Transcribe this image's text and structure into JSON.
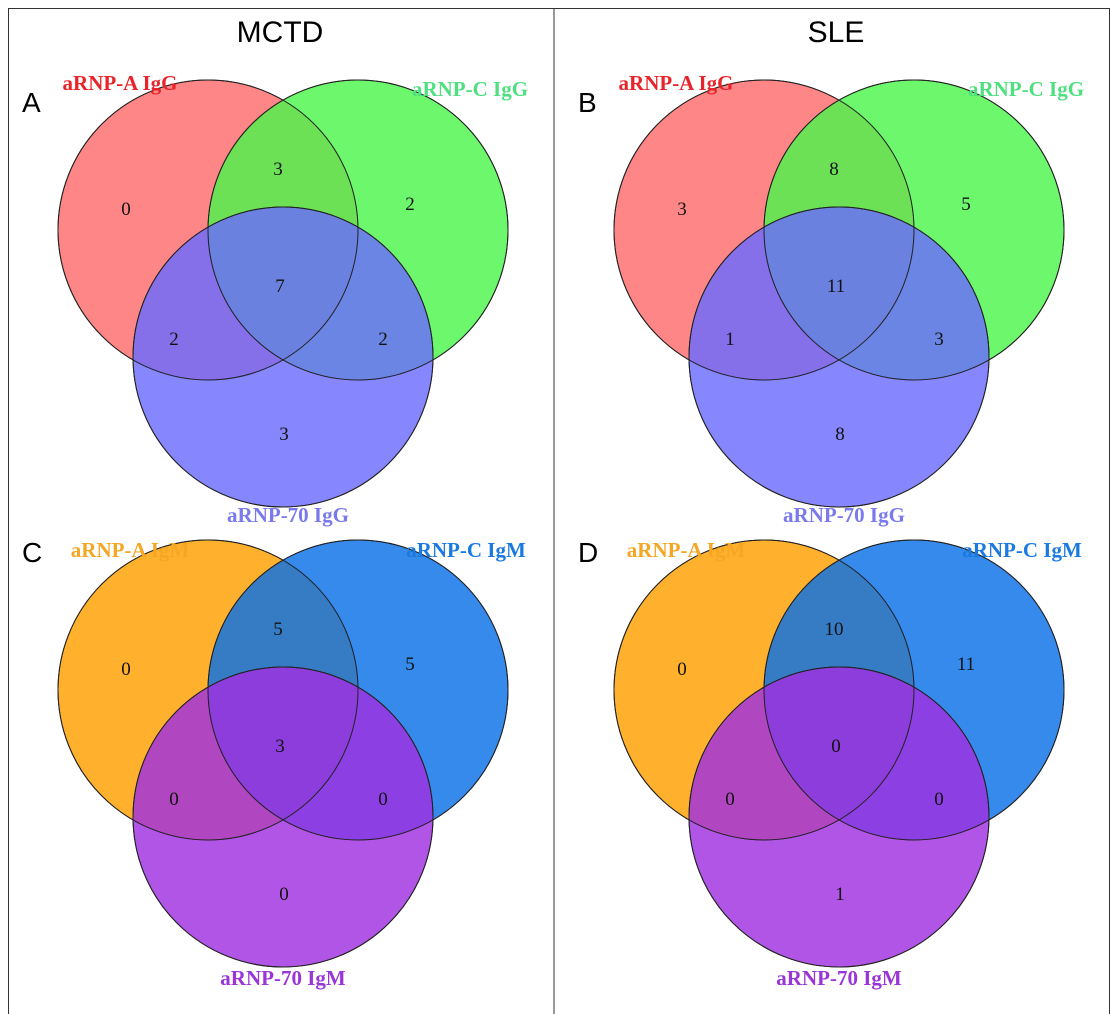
{
  "columns": [
    {
      "title": "MCTD"
    },
    {
      "title": "SLE"
    }
  ],
  "panels": [
    {
      "letter": "A",
      "sets": [
        {
          "label": "aRNP-A IgG",
          "fill": "#ff6b6b",
          "label_color": "#e8242a"
        },
        {
          "label": "aRNP-C IgG",
          "fill": "#4cf54c",
          "label_color": "#4ee07f"
        },
        {
          "label": "aRNP-70 IgG",
          "fill": "#6b6bff",
          "label_color": "#7a7aee"
        }
      ],
      "counts": {
        "a_only": "0",
        "c_only": "2",
        "p70_only": "3",
        "a_c": "3",
        "a_p70": "2",
        "c_p70": "2",
        "all": "7"
      }
    },
    {
      "letter": "B",
      "sets": [
        {
          "label": "aRNP-A IgG",
          "fill": "#ff6b6b",
          "label_color": "#e8242a"
        },
        {
          "label": "aRNP-C IgG",
          "fill": "#4cf54c",
          "label_color": "#4ee07f"
        },
        {
          "label": "aRNP-70 IgG",
          "fill": "#6b6bff",
          "label_color": "#7a7aee"
        }
      ],
      "counts": {
        "a_only": "3",
        "c_only": "5",
        "p70_only": "8",
        "a_c": "8",
        "a_p70": "1",
        "c_p70": "3",
        "all": "11"
      }
    },
    {
      "letter": "C",
      "sets": [
        {
          "label": "aRNP-A IgM",
          "fill": "#ffa000",
          "label_color": "#f5a623"
        },
        {
          "label": "aRNP-C IgM",
          "fill": "#0a70e6",
          "label_color": "#1a7ae0"
        },
        {
          "label": "aRNP-70 IgM",
          "fill": "#a030e0",
          "label_color": "#9a35d8"
        }
      ],
      "counts": {
        "a_only": "0",
        "c_only": "5",
        "p70_only": "0",
        "a_c": "5",
        "a_p70": "0",
        "c_p70": "0",
        "all": "3"
      }
    },
    {
      "letter": "D",
      "sets": [
        {
          "label": "aRNP-A IgM",
          "fill": "#ffa000",
          "label_color": "#f5a623"
        },
        {
          "label": "aRNP-C IgM",
          "fill": "#0a70e6",
          "label_color": "#1a7ae0"
        },
        {
          "label": "aRNP-70 IgM",
          "fill": "#a030e0",
          "label_color": "#9a35d8"
        }
      ],
      "counts": {
        "a_only": "0",
        "c_only": "11",
        "p70_only": "1",
        "a_c": "10",
        "a_p70": "0",
        "c_p70": "0",
        "all": "0"
      }
    }
  ]
}
